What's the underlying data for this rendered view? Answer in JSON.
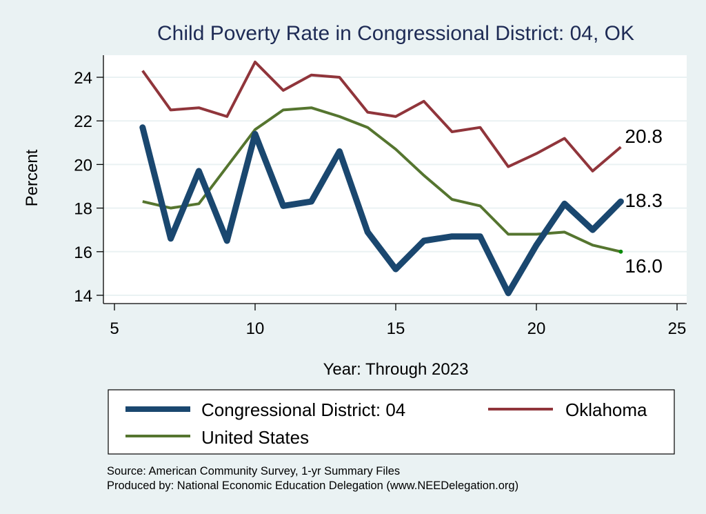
{
  "chart_data": {
    "type": "line",
    "title": "Child Poverty Rate in Congressional District:  04, OK",
    "xlabel": "Year: Through 2023",
    "ylabel": "Percent",
    "xlim": [
      5,
      25
    ],
    "ylim": [
      14,
      24
    ],
    "x_ticks": [
      5,
      10,
      15,
      20,
      25
    ],
    "y_ticks": [
      14,
      16,
      18,
      20,
      22,
      24
    ],
    "grid": true,
    "legend_position": "bottom",
    "x": [
      6,
      7,
      8,
      9,
      10,
      11,
      12,
      13,
      14,
      15,
      16,
      17,
      18,
      19,
      20,
      21,
      22,
      23
    ],
    "series": [
      {
        "name": "Congressional District:  04",
        "color": "#1a476f",
        "end_label": "18.3",
        "values": [
          21.7,
          16.6,
          19.7,
          16.5,
          21.4,
          18.1,
          18.3,
          20.6,
          16.9,
          15.2,
          16.5,
          16.7,
          16.7,
          14.1,
          16.3,
          18.2,
          17.0,
          18.3
        ]
      },
      {
        "name": "Oklahoma",
        "color": "#90353b",
        "end_label": "20.8",
        "values": [
          24.3,
          22.5,
          22.6,
          22.2,
          24.7,
          23.4,
          24.1,
          24.0,
          22.4,
          22.2,
          22.9,
          21.5,
          21.7,
          19.9,
          20.5,
          21.2,
          19.7,
          20.8
        ]
      },
      {
        "name": "United States",
        "color": "#55752f",
        "end_label": "16.0",
        "values": [
          18.3,
          18.0,
          18.2,
          19.9,
          21.6,
          22.5,
          22.6,
          22.2,
          21.7,
          20.7,
          19.5,
          18.4,
          18.1,
          16.8,
          16.8,
          16.9,
          16.3,
          16.0
        ]
      }
    ]
  },
  "notes": {
    "source": "Source: American Community Survey, 1-yr Summary Files",
    "produced_by": "Produced by: National Economic Education Delegation (www.NEEDelegation.org)"
  }
}
